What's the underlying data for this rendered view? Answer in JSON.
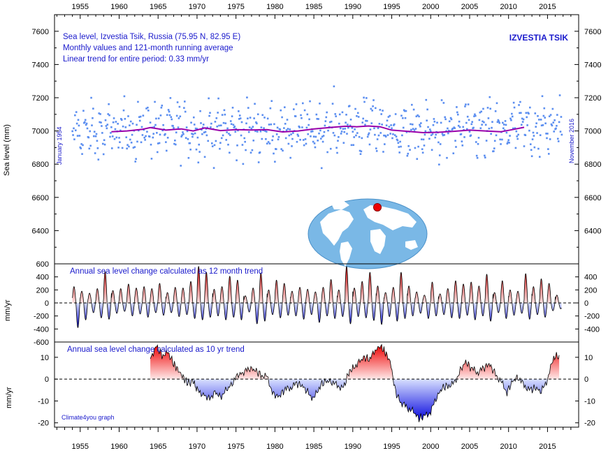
{
  "chart_data": [
    {
      "type": "scatter",
      "panel": "main",
      "text_lines": [
        "Sea level, Izvestia Tsik, Russia (75.95 N, 82.95 E)",
        "Monthly values and 121-month running average",
        "Linear trend for entire period: 0.33 mm/yr"
      ],
      "station_label": "IZVESTIA TSIK",
      "start_label": "January 1954",
      "end_label": "November 2016",
      "ylabel": "Sea level (mm)",
      "ylim": [
        6200,
        7700
      ],
      "yticks": [
        6400,
        6600,
        6800,
        7000,
        7200,
        7400,
        7600
      ],
      "xlim": [
        1951.7,
        2019.0
      ],
      "xticks": [
        1955,
        1960,
        1965,
        1970,
        1975,
        1980,
        1985,
        1990,
        1995,
        2000,
        2005,
        2010,
        2015
      ],
      "point_color": "#5b8ef0",
      "line_color": "#9900aa",
      "monthly_series": {
        "name": "Monthly values",
        "note": "approximately 740 monthly values read from the plot, 1954.0–2016.9, mostly 6800–7200 mm"
      },
      "running_average": {
        "name": "121-month running average",
        "x": [
          1959.0,
          1961.0,
          1963.0,
          1964.0,
          1966.0,
          1968.0,
          1969.5,
          1971.0,
          1973.0,
          1975.0,
          1977.0,
          1979.0,
          1981.0,
          1983.0,
          1985.0,
          1987.0,
          1989.0,
          1990.5,
          1992.0,
          1993.5,
          1995.0,
          1997.0,
          1999.0,
          2001.0,
          2003.0,
          2005.0,
          2007.0,
          2009.0,
          2010.5,
          2012.0
        ],
        "y": [
          6995,
          7000,
          7010,
          7020,
          7005,
          7012,
          7000,
          7018,
          7002,
          7008,
          7006,
          7008,
          6994,
          7000,
          7012,
          7020,
          7028,
          7025,
          7030,
          7025,
          7005,
          6998,
          6990,
          6992,
          6998,
          7005,
          7000,
          6995,
          7008,
          7022
        ]
      }
    },
    {
      "type": "area",
      "panel": "annual_12_month",
      "title": "Annual sea level change calculated as 12 month trend",
      "ylabel": "mm/yr",
      "ylim": [
        -600,
        600
      ],
      "left_ticks": [
        600,
        400,
        200,
        0,
        -200,
        -400,
        -600
      ],
      "right_ticks": [
        400,
        200,
        0,
        -200,
        -400
      ],
      "xlim": [
        1951.7,
        2019.0
      ],
      "positive_color": "#cc0000",
      "negative_color": "#0000dd",
      "x_range": [
        1954.0,
        2016.8
      ],
      "annual_peaks": [
        250,
        180,
        150,
        220,
        480,
        190,
        220,
        290,
        230,
        250,
        220,
        300,
        160,
        240,
        230,
        330,
        560,
        470,
        210,
        250,
        410,
        350,
        110,
        230,
        460,
        200,
        350,
        300,
        180,
        240,
        210,
        170,
        240,
        360,
        200,
        560,
        230,
        330,
        470,
        260,
        160,
        240,
        470,
        260,
        170,
        120,
        320,
        140,
        220,
        340,
        290,
        320,
        260,
        440,
        160,
        340,
        200,
        180,
        450,
        250,
        370,
        300,
        120
      ],
      "annual_troughs": [
        -380,
        -260,
        -150,
        -230,
        -250,
        -160,
        -130,
        -200,
        -170,
        -220,
        -150,
        -190,
        -150,
        -210,
        -180,
        -240,
        -260,
        -220,
        -200,
        -260,
        -220,
        -260,
        -140,
        -320,
        -280,
        -180,
        -230,
        -190,
        -200,
        -250,
        -180,
        -300,
        -200,
        -240,
        -210,
        -320,
        -210,
        -230,
        -270,
        -330,
        -210,
        -280,
        -240,
        -200,
        -160,
        -240,
        -200,
        -180,
        -230,
        -240,
        -190,
        -260,
        -200,
        -280,
        -150,
        -240,
        -190,
        -160,
        -250,
        -180,
        -220,
        -120,
        -90
      ]
    },
    {
      "type": "area",
      "panel": "ten_year",
      "title": "Annual sea level change calculated as 10 yr trend",
      "ylabel": "mm/yr",
      "ylim": [
        -22,
        17
      ],
      "ticks": [
        10,
        0,
        -10,
        -20
      ],
      "xlim": [
        1951.7,
        2019.0
      ],
      "positive_color": "#dd0000",
      "negative_color": "#0000ee",
      "x": [
        1964.0,
        1964.8,
        1965.5,
        1966.3,
        1967.0,
        1967.6,
        1968.2,
        1968.8,
        1969.5,
        1970.0,
        1970.8,
        1971.5,
        1972.3,
        1973.0,
        1973.8,
        1974.5,
        1975.3,
        1976.0,
        1976.8,
        1977.5,
        1978.2,
        1979.0,
        1979.8,
        1980.5,
        1981.2,
        1982.0,
        1982.8,
        1983.5,
        1984.2,
        1985.0,
        1985.8,
        1986.5,
        1987.2,
        1988.0,
        1988.8,
        1989.5,
        1990.0,
        1990.8,
        1991.5,
        1992.2,
        1993.0,
        1993.6,
        1994.2,
        1994.8,
        1995.5,
        1996.2,
        1997.0,
        1997.8,
        1998.5,
        1999.2,
        2000.0,
        2000.8,
        2001.5,
        2002.2,
        2003.0,
        2003.8,
        2004.5,
        2005.2,
        2006.0,
        2006.8,
        2007.5,
        2008.2,
        2009.0,
        2009.8,
        2010.5,
        2011.2,
        2012.0,
        2012.8,
        2013.5,
        2014.2,
        2015.0,
        2015.8,
        2016.5
      ],
      "y": [
        10,
        15,
        11,
        12,
        7,
        4,
        1,
        -2,
        -1,
        -5,
        -7,
        -9,
        -6,
        -8,
        -5,
        -2,
        2,
        3,
        5,
        4,
        2,
        1,
        -7,
        -8,
        -5,
        -4,
        -2,
        -3,
        -6,
        -9,
        -3,
        -1,
        -1,
        -3,
        -4,
        3,
        5,
        8,
        10,
        9,
        14,
        15,
        12,
        8,
        -6,
        -11,
        -13,
        -15,
        -18,
        -17,
        -15,
        -8,
        -4,
        -3,
        -2,
        4,
        8,
        5,
        3,
        5,
        7,
        3,
        -1,
        -6,
        -1,
        1,
        -3,
        -5,
        -4,
        -6,
        0,
        10,
        11
      ]
    }
  ],
  "credit": "Climate4you graph"
}
